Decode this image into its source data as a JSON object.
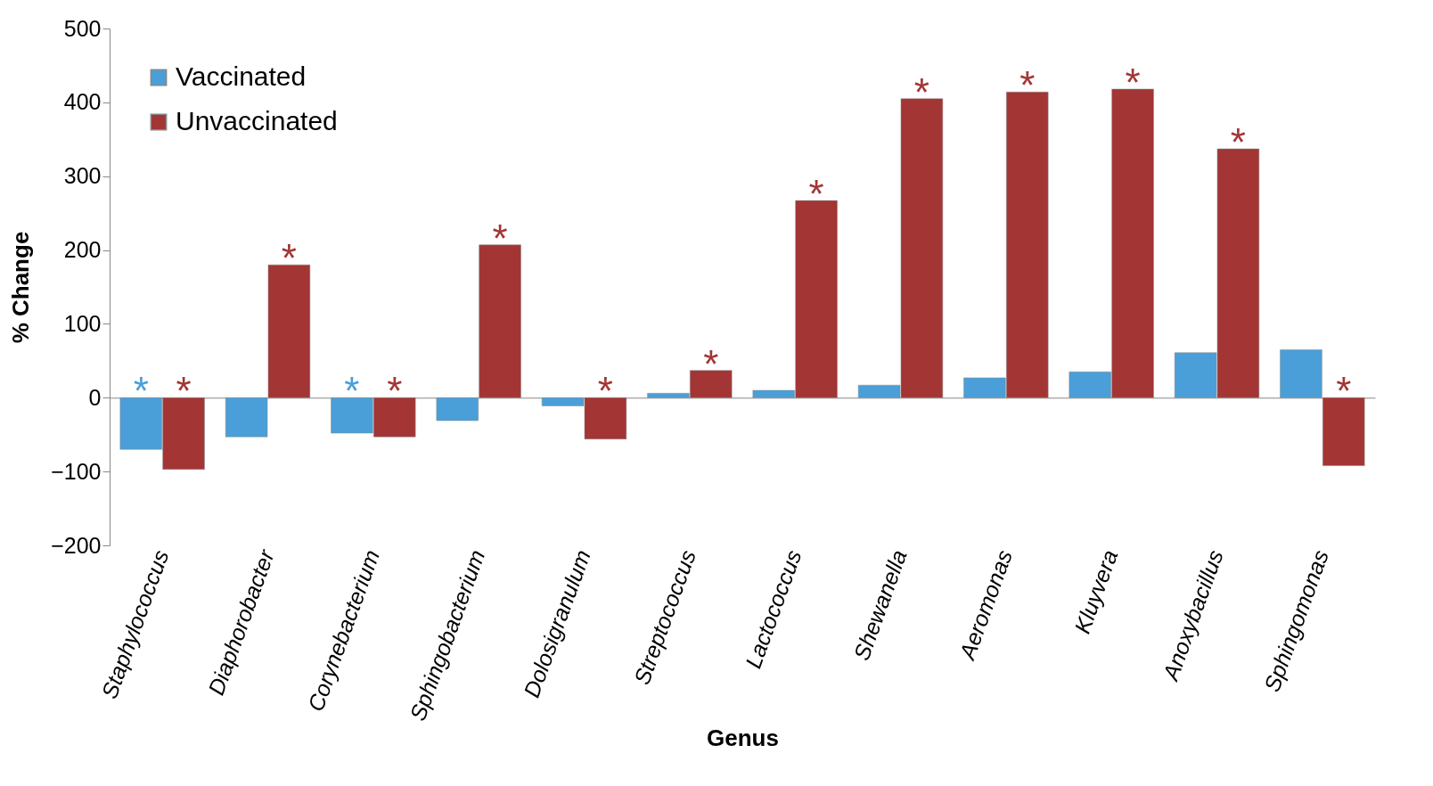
{
  "chart_data": {
    "type": "bar",
    "xlabel": "Genus",
    "ylabel": "% Change",
    "categories": [
      "Staphylococcus",
      "Diaphorobacter",
      "Corynebacterium",
      "Sphingobacterium",
      "Dolosigranulum",
      "Streptococcus",
      "Lactococcus",
      "Shewanella",
      "Aeromonas",
      "Kluyvera",
      "Anoxybacillus",
      "Sphingomonas"
    ],
    "series": [
      {
        "name": "Vaccinated",
        "color": "#4a9fd8",
        "values": [
          -70,
          -53,
          -48,
          -31,
          -11,
          6,
          10,
          17,
          27,
          35,
          61,
          65
        ],
        "value_labels": [
          "*",
          null,
          "*",
          null,
          null,
          null,
          null,
          null,
          null,
          null,
          null,
          null
        ]
      },
      {
        "name": "Unvaccinated",
        "color": "#a33535",
        "values": [
          -97,
          180,
          -53,
          207,
          -56,
          37,
          267,
          405,
          414,
          418,
          337,
          -92
        ],
        "value_labels": [
          "*",
          "*",
          "*",
          "*",
          "*",
          "*",
          "*",
          "*",
          "*",
          "*",
          "*",
          "*"
        ]
      }
    ],
    "ylim": [
      -200,
      500
    ],
    "yticks": [
      -200,
      -100,
      0,
      100,
      200,
      300,
      400,
      500
    ],
    "legend": "top left"
  }
}
